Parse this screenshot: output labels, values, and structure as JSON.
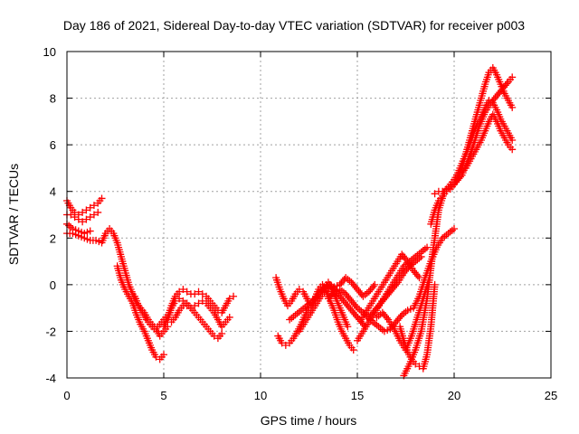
{
  "chart_data": {
    "type": "scatter",
    "title": "Day 186 of 2021, Sidereal Day-to-day VTEC variation (SDTVAR) for receiver p003",
    "xlabel": "GPS time / hours",
    "ylabel": "SDTVAR / TECUs",
    "xlim": [
      0,
      25
    ],
    "ylim": [
      -4,
      10
    ],
    "xticks": [
      0,
      5,
      10,
      15,
      20,
      25
    ],
    "yticks": [
      -4,
      -2,
      0,
      2,
      4,
      6,
      8,
      10
    ],
    "xtick_labels": [
      "0",
      "5",
      "10",
      "15",
      "20",
      "25"
    ],
    "ytick_labels": [
      "-4",
      "-2",
      "0",
      "2",
      "4",
      "6",
      "8",
      "10"
    ],
    "grid": true,
    "marker": "+",
    "color": "#ff0000",
    "series": [
      {
        "x": [
          0.0,
          0.2,
          0.4,
          0.6,
          0.8,
          1.0,
          1.2,
          1.4,
          1.6,
          1.8
        ],
        "y": [
          3.6,
          3.3,
          3.1,
          3.0,
          3.1,
          3.2,
          3.3,
          3.4,
          3.5,
          3.7
        ]
      },
      {
        "x": [
          0.0,
          0.2,
          0.4,
          0.6,
          0.8,
          1.0,
          1.2,
          1.4,
          1.6
        ],
        "y": [
          3.0,
          3.0,
          2.9,
          2.8,
          2.7,
          2.8,
          2.9,
          3.0,
          3.1
        ]
      },
      {
        "x": [
          0.0,
          0.3,
          0.6,
          0.9,
          1.2
        ],
        "y": [
          2.6,
          2.4,
          2.3,
          2.2,
          2.3
        ]
      },
      {
        "x": [
          0.0,
          0.3,
          0.6,
          0.9,
          1.2,
          1.5,
          1.8,
          2.0,
          2.2,
          2.4,
          2.6,
          2.8,
          3.0,
          3.2,
          3.4,
          3.6,
          3.8,
          4.0,
          4.2,
          4.4,
          4.6,
          4.8,
          5.0,
          5.2
        ],
        "y": [
          2.2,
          2.2,
          2.1,
          2.0,
          1.9,
          1.9,
          1.8,
          2.2,
          2.4,
          2.2,
          1.8,
          1.2,
          0.6,
          0.0,
          -0.4,
          -0.8,
          -1.0,
          -1.2,
          -1.5,
          -1.7,
          -1.9,
          -2.2,
          -2.0,
          -1.8
        ]
      },
      {
        "x": [
          2.6,
          2.8,
          3.0,
          3.2,
          3.4,
          3.6,
          3.8,
          4.0,
          4.2,
          4.4,
          4.6,
          4.8,
          5.0
        ],
        "y": [
          0.8,
          0.2,
          -0.2,
          -0.5,
          -0.8,
          -1.3,
          -1.7,
          -2.0,
          -2.4,
          -2.8,
          -3.1,
          -3.2,
          -3.0
        ]
      },
      {
        "x": [
          3.5,
          3.7,
          3.9,
          4.1,
          4.3,
          4.5,
          4.7,
          4.9,
          5.1
        ],
        "y": [
          -0.5,
          -0.9,
          -1.2,
          -1.5,
          -1.7,
          -1.9,
          -1.8,
          -1.6,
          -1.4
        ]
      },
      {
        "x": [
          5.0,
          5.2,
          5.4,
          5.6,
          5.8,
          6.0,
          6.2,
          6.4,
          6.6,
          6.8,
          7.0,
          7.2,
          7.4,
          7.6,
          7.8,
          8.0,
          8.2,
          8.4,
          8.6
        ],
        "y": [
          -1.8,
          -1.4,
          -0.9,
          -0.5,
          -0.3,
          -0.2,
          -0.3,
          -0.4,
          -0.4,
          -0.3,
          -0.4,
          -0.5,
          -0.7,
          -0.9,
          -1.1,
          -1.2,
          -0.9,
          -0.6,
          -0.5
        ]
      },
      {
        "x": [
          5.2,
          5.4,
          5.6,
          5.8,
          6.0,
          6.2,
          6.4,
          6.6,
          6.8,
          7.0,
          7.2,
          7.4,
          7.6,
          7.8,
          8.0,
          8.2,
          8.4
        ],
        "y": [
          -1.5,
          -1.0,
          -0.7,
          -0.6,
          -0.7,
          -0.9,
          -1.0,
          -0.9,
          -0.8,
          -0.7,
          -0.8,
          -1.0,
          -1.2,
          -1.5,
          -1.8,
          -1.6,
          -1.4
        ]
      },
      {
        "x": [
          5.4,
          5.6,
          5.8,
          6.0,
          6.2,
          6.4,
          6.6,
          6.8,
          7.0,
          7.2,
          7.4,
          7.6,
          7.8,
          8.0
        ],
        "y": [
          -1.6,
          -1.4,
          -1.1,
          -0.9,
          -0.8,
          -1.0,
          -1.2,
          -1.4,
          -1.6,
          -1.8,
          -2.0,
          -2.2,
          -2.3,
          -2.1
        ]
      },
      {
        "x": [
          10.8,
          11.0,
          11.2,
          11.4,
          11.6,
          11.8,
          12.0,
          12.2,
          12.4,
          12.6,
          12.8,
          13.0,
          13.2,
          13.4,
          13.6,
          13.8,
          14.0,
          14.2,
          14.4,
          14.6,
          14.8
        ],
        "y": [
          0.3,
          -0.2,
          -0.6,
          -0.9,
          -0.7,
          -0.4,
          -0.2,
          -0.3,
          -0.6,
          -0.9,
          -0.6,
          -0.2,
          0.0,
          -0.3,
          -0.7,
          -1.1,
          -1.6,
          -2.0,
          -2.3,
          -2.6,
          -2.8
        ]
      },
      {
        "x": [
          10.9,
          11.1,
          11.3,
          11.5,
          11.7,
          11.9,
          12.1,
          12.3,
          12.5,
          12.7,
          12.9,
          13.1,
          13.3,
          13.5,
          13.7,
          13.9,
          14.1,
          14.3,
          14.5
        ],
        "y": [
          -2.2,
          -2.5,
          -2.6,
          -2.5,
          -2.3,
          -2.0,
          -1.7,
          -1.3,
          -1.0,
          -0.8,
          -0.5,
          -0.3,
          -0.1,
          0.1,
          -0.2,
          -0.6,
          -1.0,
          -1.4,
          -1.8
        ]
      },
      {
        "x": [
          11.5,
          11.8,
          12.1,
          12.4,
          12.7,
          13.0,
          13.3,
          13.6,
          13.9,
          14.2,
          14.5,
          14.8,
          15.1,
          15.4
        ],
        "y": [
          -1.5,
          -1.3,
          -1.1,
          -0.9,
          -0.7,
          -0.4,
          -0.1,
          0.0,
          -0.3,
          -0.6,
          -0.9,
          -1.2,
          -1.5,
          -1.8
        ]
      },
      {
        "x": [
          12.0,
          12.3,
          12.6,
          12.9,
          13.2,
          13.5,
          13.8,
          14.1,
          14.4,
          14.7,
          15.0,
          15.3,
          15.6,
          15.9
        ],
        "y": [
          -2.0,
          -1.6,
          -1.2,
          -0.8,
          -0.4,
          -0.2,
          -0.1,
          0.0,
          0.3,
          0.1,
          -0.2,
          -0.5,
          -0.3,
          0.0
        ]
      },
      {
        "x": [
          13.5,
          13.8,
          14.1,
          14.4,
          14.7,
          15.0,
          15.3,
          15.6,
          15.9,
          16.2,
          16.5,
          16.8,
          17.1,
          17.4,
          17.7,
          18.0,
          18.3
        ],
        "y": [
          -0.6,
          -0.3,
          -0.2,
          -0.4,
          -0.7,
          -1.0,
          -1.2,
          -1.4,
          -1.1,
          -0.8,
          -0.5,
          -0.2,
          0.1,
          0.5,
          0.8,
          1.0,
          1.2
        ]
      },
      {
        "x": [
          15.0,
          15.3,
          15.6,
          15.9,
          16.2,
          16.5,
          16.8,
          17.1,
          17.4,
          17.7,
          18.0,
          18.3,
          18.6
        ],
        "y": [
          -2.4,
          -2.0,
          -1.6,
          -1.2,
          -0.8,
          -0.4,
          0.0,
          0.4,
          0.8,
          1.0,
          1.2,
          1.4,
          1.6
        ]
      },
      {
        "x": [
          15.2,
          15.5,
          15.8,
          16.1,
          16.4,
          16.7,
          17.0,
          17.3,
          17.6,
          17.9,
          18.2
        ],
        "y": [
          -1.5,
          -1.1,
          -0.7,
          -0.3,
          0.1,
          0.5,
          0.9,
          1.3,
          1.0,
          0.6,
          0.3
        ]
      },
      {
        "x": [
          15.5,
          15.8,
          16.1,
          16.4,
          16.7,
          17.0,
          17.3,
          17.6,
          17.9,
          18.2,
          18.5,
          18.8,
          19.1,
          19.4,
          19.7,
          20.0
        ],
        "y": [
          -1.4,
          -1.6,
          -1.8,
          -2.0,
          -1.9,
          -1.6,
          -1.3,
          -1.1,
          -1.0,
          -0.5,
          0.3,
          1.0,
          1.6,
          2.0,
          2.2,
          2.4
        ]
      },
      {
        "x": [
          16.0,
          16.3,
          16.6,
          16.9,
          17.2,
          17.5,
          17.8,
          18.1,
          18.4,
          18.7
        ],
        "y": [
          -1.4,
          -1.2,
          -1.5,
          -1.9,
          -2.4,
          -2.8,
          -2.2,
          -1.4,
          -0.6,
          0.2
        ]
      },
      {
        "x": [
          17.4,
          17.7,
          18.0,
          18.3,
          18.6,
          18.9,
          19.2,
          19.5,
          19.8,
          20.1,
          20.4,
          20.7,
          21.0,
          21.3,
          21.6,
          21.9,
          22.2,
          22.5,
          22.8,
          23.0
        ],
        "y": [
          -3.9,
          -3.4,
          -2.8,
          -2.0,
          -0.6,
          1.4,
          3.2,
          4.0,
          4.2,
          4.4,
          4.7,
          5.3,
          6.0,
          6.8,
          7.4,
          7.8,
          8.1,
          8.4,
          8.7,
          8.9
        ]
      },
      {
        "x": [
          18.8,
          19.0,
          19.2,
          19.4,
          19.6,
          19.8,
          20.0,
          20.2,
          20.4,
          20.6,
          20.8,
          21.0,
          21.2,
          21.4,
          21.6,
          21.8,
          22.0,
          22.2,
          22.4,
          22.6,
          22.8,
          23.0
        ],
        "y": [
          2.6,
          3.2,
          3.6,
          3.8,
          4.0,
          4.1,
          4.3,
          4.6,
          5.0,
          5.6,
          6.2,
          6.8,
          7.4,
          8.0,
          8.6,
          9.1,
          9.3,
          9.0,
          8.6,
          8.2,
          7.9,
          7.6
        ]
      },
      {
        "x": [
          19.0,
          19.2,
          19.4,
          19.6,
          19.8,
          20.0,
          20.2,
          20.4,
          20.6,
          20.8,
          21.0,
          21.2,
          21.4,
          21.6,
          21.8,
          22.0,
          22.2,
          22.4,
          22.6,
          22.8,
          23.0
        ],
        "y": [
          3.9,
          4.0,
          4.0,
          4.1,
          4.3,
          4.5,
          4.8,
          5.2,
          5.6,
          6.0,
          6.5,
          6.9,
          7.2,
          7.6,
          7.9,
          7.8,
          7.5,
          7.1,
          6.8,
          6.5,
          6.2
        ]
      },
      {
        "x": [
          20.6,
          20.8,
          21.0,
          21.2,
          21.4,
          21.6,
          21.8,
          22.0,
          22.2,
          22.4,
          22.6,
          22.8,
          23.0
        ],
        "y": [
          5.0,
          5.3,
          5.6,
          5.9,
          6.2,
          6.6,
          7.0,
          7.3,
          7.0,
          6.6,
          6.3,
          6.0,
          5.8
        ]
      },
      {
        "x": [
          17.2,
          17.4,
          17.6,
          17.8,
          18.0,
          18.2,
          18.4,
          18.6,
          18.8,
          19.0
        ],
        "y": [
          -1.8,
          -2.4,
          -2.9,
          -3.2,
          -3.4,
          -3.5,
          -3.6,
          -3.0,
          -1.8,
          0.0
        ]
      }
    ]
  }
}
